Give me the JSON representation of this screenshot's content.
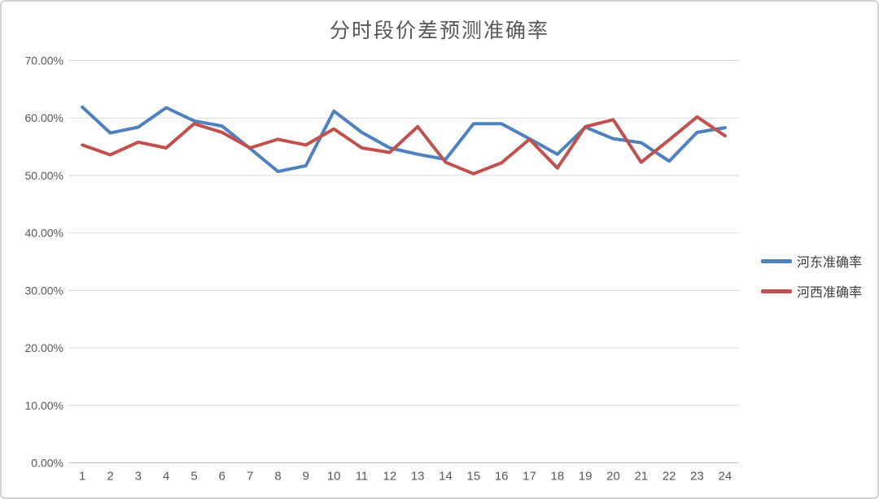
{
  "chart_data": {
    "type": "line",
    "title": "分时段价差预测准确率",
    "categories": [
      "1",
      "2",
      "3",
      "4",
      "5",
      "6",
      "7",
      "8",
      "9",
      "10",
      "11",
      "12",
      "13",
      "14",
      "15",
      "16",
      "17",
      "18",
      "19",
      "20",
      "21",
      "22",
      "23",
      "24"
    ],
    "series": [
      {
        "name": "河东准确率",
        "color": "#4E81BD",
        "values": [
          61.9,
          57.4,
          58.4,
          61.8,
          59.5,
          58.6,
          54.7,
          50.7,
          51.7,
          61.2,
          57.5,
          54.8,
          53.7,
          52.8,
          59.0,
          59.0,
          56.4,
          53.7,
          58.4,
          56.4,
          55.7,
          52.5,
          57.5,
          58.3
        ]
      },
      {
        "name": "河西准确率",
        "color": "#C1504E",
        "values": [
          55.3,
          53.6,
          55.8,
          54.8,
          59.0,
          57.5,
          54.8,
          56.3,
          55.3,
          58.1,
          54.8,
          54.0,
          58.5,
          52.3,
          50.3,
          52.2,
          56.3,
          51.3,
          58.5,
          59.7,
          52.3,
          56.2,
          60.2,
          56.9
        ]
      }
    ],
    "ylim": [
      0,
      70
    ],
    "ytick_step": 10,
    "ytick_labels": [
      "0.00%",
      "10.00%",
      "20.00%",
      "30.00%",
      "40.00%",
      "50.00%",
      "60.00%",
      "70.00%"
    ],
    "grid": true,
    "legend_position": "right",
    "gridline_color": "#d9d9d9",
    "axis_label_color": "#595959",
    "title_color": "#595959"
  }
}
